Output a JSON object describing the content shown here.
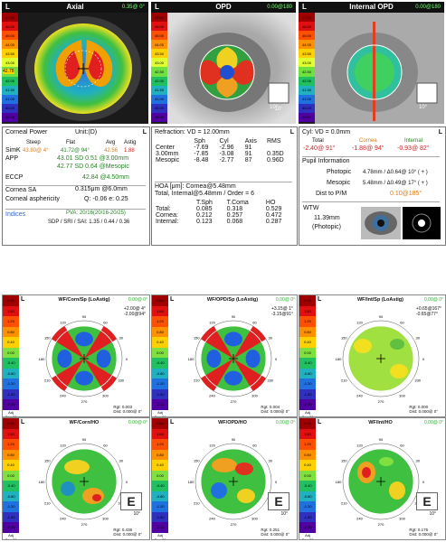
{
  "scale_values": [
    "47.00",
    "46.00",
    "45.00",
    "44.00",
    "43.50",
    "43.00",
    "42.50",
    "42.00",
    "41.50",
    "41.00",
    "40.00",
    "39.00"
  ],
  "scale_colors": [
    "#a00000",
    "#e01010",
    "#ff5000",
    "#ff9000",
    "#ffd000",
    "#e0ff30",
    "#70e040",
    "#20c060",
    "#20b0c0",
    "#2070e0",
    "#3030c0",
    "#5000a0"
  ],
  "wf_scale_values": [
    "2.00",
    "1.60",
    "1.20",
    "0.80",
    "0.40",
    "0.00",
    "-0.40",
    "-0.80",
    "-1.20",
    "-1.60",
    "-2.00"
  ],
  "maps": {
    "axial": {
      "title": "Axial",
      "side": "L",
      "corner": "0.35@ 0°",
      "left_label": "42.78",
      "footer": "Num\n20"
    },
    "opd": {
      "title": "OPD",
      "side": "L",
      "corner": "0.00@180",
      "side_label": "10°"
    },
    "internal": {
      "title": "Internal OPD",
      "side": "L",
      "corner": "0.00@180",
      "side_label": "10°"
    }
  },
  "corneal": {
    "title": "Corneal Power",
    "unit": "Unit:(D)",
    "side": "L",
    "col_steep": "Steep",
    "col_flat": "Flat",
    "col_avg": "Avg",
    "col_astig": "Astig",
    "simk_label": "SimK",
    "simk_steep": "43.80@ 4°",
    "simk_flat": "41.72@ 94°",
    "simk_avg": "42.56",
    "simk_astig": "1.88",
    "app_label": "APP",
    "app1": "43.01 SD 0.51 @3.00mm",
    "app2": "42.77 SD 0.64 @Mesopic",
    "eccp_label": "ECCP",
    "eccp_val": "42.84 @4.50mm",
    "sa_label": "Cornea SA",
    "sa_val": "0.315μm @6.0mm",
    "asph_label": "Corneal asphericity",
    "asph_val": "Q: -0.06  e: 0.25",
    "indices_label": "Indices",
    "pva": "PVA: 20/16(20/16-20/25)",
    "sdp": "SDP / SRI / SAI: 1.35 / 0.44 / 0.36"
  },
  "refraction": {
    "title": "Refraction: VD = 12.00mm",
    "side": "L",
    "headers": [
      "",
      "Sph",
      "Cyl",
      "Axis",
      "RMS"
    ],
    "rows": [
      [
        "Center",
        "-7.69",
        "-2.96",
        "91",
        ""
      ],
      [
        "3.00mm",
        "-7.85",
        "-3.08",
        "91",
        "0.35D"
      ],
      [
        "Mesopic",
        "-8.48",
        "-2.77",
        "87",
        "0.96D"
      ]
    ],
    "hoa_title": "HOA [μm]: Cornea@5.48mm",
    "total_title": "Total, Internal@5.48mm / Order = 6",
    "hoa_headers": [
      "",
      "T.Sph",
      "T.Coma",
      "HO"
    ],
    "hoa_rows": [
      [
        "Total:",
        "0.085",
        "0.318",
        "0.529"
      ],
      [
        "Cornea:",
        "0.212",
        "0.257",
        "0.472"
      ],
      [
        "Internal:",
        "0.123",
        "0.068",
        "0.287"
      ]
    ]
  },
  "cyl": {
    "title": "Cyl: VD = 0.0mm",
    "side": "L",
    "h_total": "Total",
    "h_cornea": "Cornea",
    "h_internal": "Internal",
    "v_total": "-2.40@ 91°",
    "v_cornea": "-1.88@ 94°",
    "v_internal": "-0.93@ 82°",
    "pupil_title": "Pupil Information",
    "photopic_label": "Photopic",
    "photopic_val": "4.78mm / Δ0.64@ 10° ( + )",
    "mesopic_label": "Mesopic",
    "mesopic_val": "5.48mm / Δ0.49@ 17° ( + )",
    "dist_label": "Dist to P/M",
    "dist_val": "0.10@185°",
    "wtw_label": "WTW",
    "wtw_val": "11.39mm",
    "wtw_sub": "(Photopic)"
  },
  "wf": [
    {
      "title": "WF/Corn/Sp (LoAstig)",
      "side": "L",
      "corner": "0.00@ 0°",
      "vals": "+2.00@ 4°\n-2.00@94°",
      "rgt": "Rgt: 0.003\nDist: 0.000@ 0°",
      "footer": "Adj\nCon 28",
      "type": "astig"
    },
    {
      "title": "WF/OPD/Sp (LoAstig)",
      "side": "L",
      "corner": "0.00@ 0°",
      "vals": "+3.15@ 1°\n-3.15@91°",
      "rgt": "Rgt: 0.004\nDist: 0.000@ 0°",
      "footer": "Adj\nCon 28",
      "type": "astig"
    },
    {
      "title": "WF/Int/Sp (LoAstig)",
      "side": "L",
      "corner": "0.00@ 0°",
      "vals": "+0.65@167°\n-0.65@77°",
      "rgt": "Rgt: 0.000\nDist: 0.000@ 0°",
      "footer": "Adj\nCon 28",
      "type": "mild"
    },
    {
      "title": "WF/Corn/HO",
      "side": "L",
      "corner": "0.00@ 0°",
      "vals": "",
      "rgt": "Rgt: 0.436\nDist: 0.000@ 0°",
      "footer": "Adj\nCon 28",
      "type": "ho",
      "icon": "E",
      "angle": "10°"
    },
    {
      "title": "WF/OPD/HO",
      "side": "L",
      "corner": "0.00@ 0°",
      "vals": "",
      "rgt": "Rgt: 0.251\nDist: 0.000@ 0°",
      "footer": "Adj\nCon 28",
      "type": "ho2",
      "icon": "E",
      "angle": "10°"
    },
    {
      "title": "WF/Int/HO",
      "side": "L",
      "corner": "0.00@ 0°",
      "vals": "",
      "rgt": "Rgt: 0.176\nDist: 0.000@ 0°",
      "footer": "Adj\nCon 28",
      "type": "ho3",
      "icon": "E",
      "angle": "10°"
    }
  ],
  "wf_ticks": [
    "90",
    "60",
    "30",
    "0",
    "330",
    "300",
    "270",
    "240",
    "210",
    "180",
    "150",
    "120"
  ]
}
